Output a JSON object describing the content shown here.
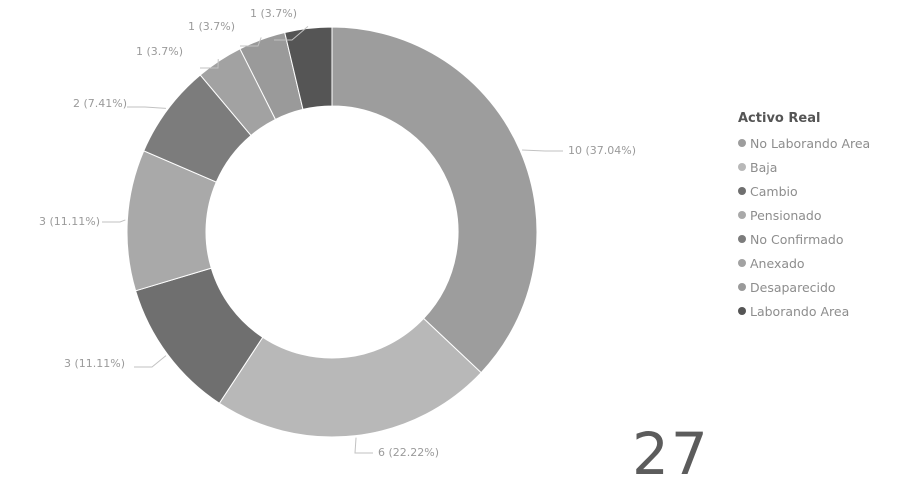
{
  "chart_data": {
    "type": "pie",
    "legend_title": "Activo Real",
    "legend_position": "right",
    "series": [
      {
        "name": "No Laborando Area",
        "value": 10,
        "label": "10 (37.04%)",
        "color": "#9d9d9d"
      },
      {
        "name": "Baja",
        "value": 6,
        "label": "6 (22.22%)",
        "color": "#b8b8b8"
      },
      {
        "name": "Cambio",
        "value": 3,
        "label": "3 (11.11%)",
        "color": "#6f6f6f"
      },
      {
        "name": "Pensionado",
        "value": 3,
        "label": "3 (11.11%)",
        "color": "#a9a9a9"
      },
      {
        "name": "No Confirmado",
        "value": 2,
        "label": "2 (7.41%)",
        "color": "#7c7c7c"
      },
      {
        "name": "Anexado",
        "value": 1,
        "label": "1 (3.7%)",
        "color": "#a2a2a2"
      },
      {
        "name": "Desaparecido",
        "value": 1,
        "label": "1 (3.7%)",
        "color": "#9a9a9a"
      },
      {
        "name": "Laborando Area",
        "value": 1,
        "label": "1 (3.7%)",
        "color": "#555555"
      }
    ]
  },
  "card": {
    "value": "27"
  }
}
